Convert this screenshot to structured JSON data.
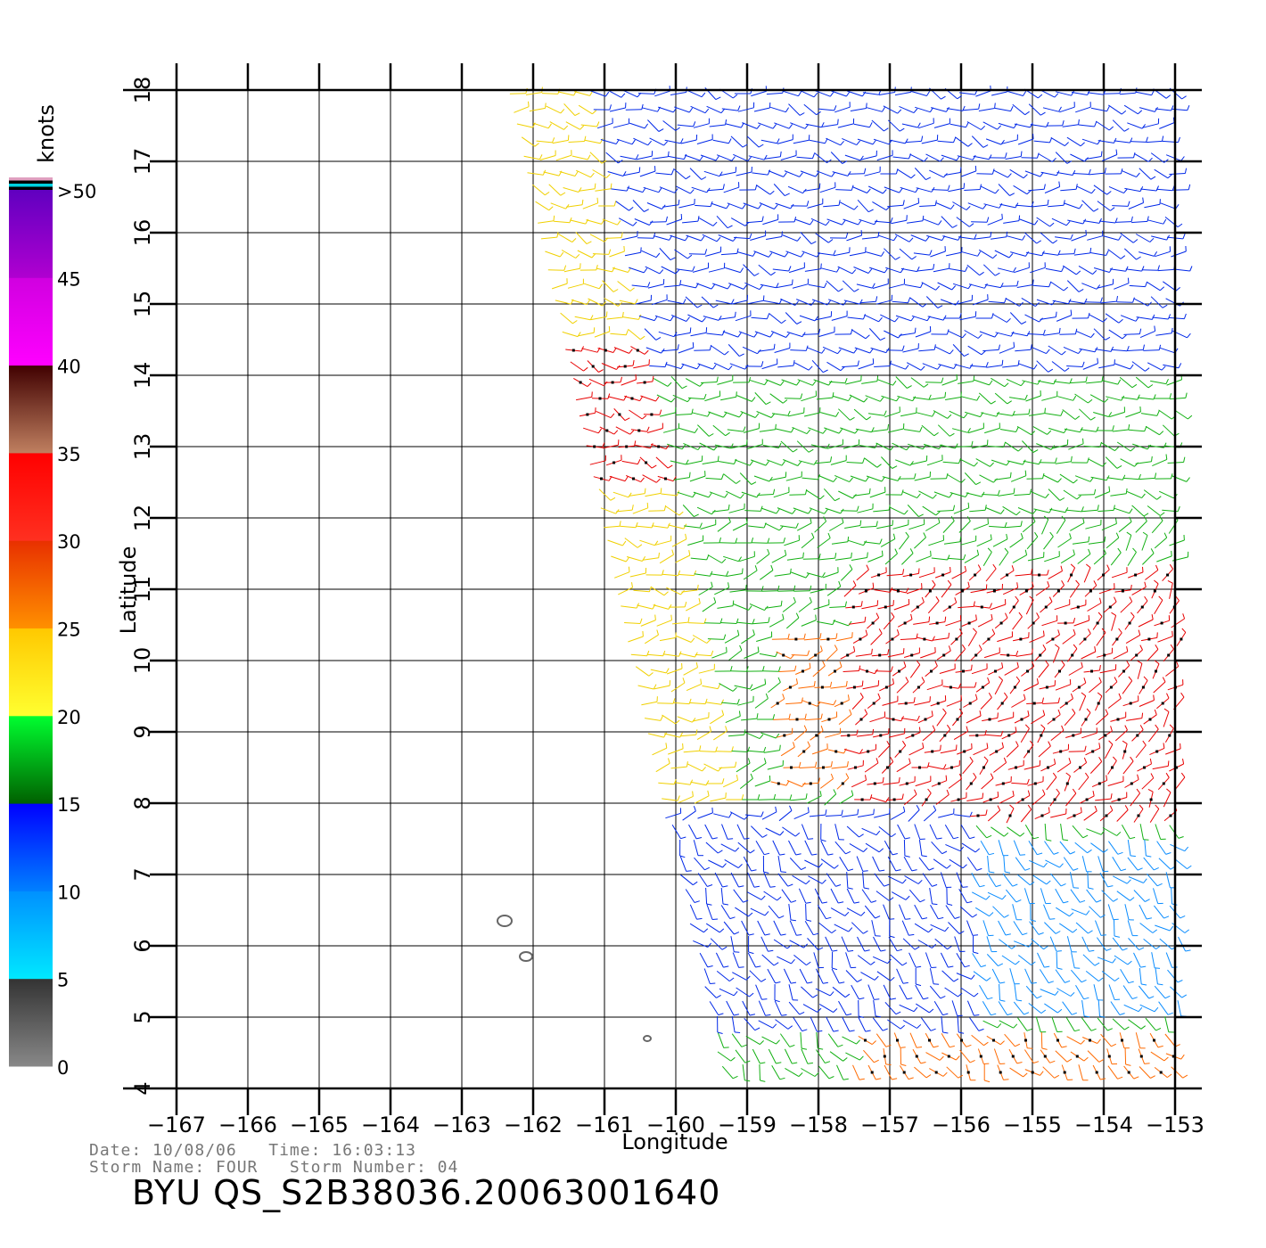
{
  "chart_data": {
    "type": "wind-vector-map",
    "xlabel": "Longitude",
    "ylabel": "Latitude",
    "xlim": [
      -167,
      -153
    ],
    "ylim": [
      4,
      18
    ],
    "x_ticks": [
      "-167",
      "-166",
      "-165",
      "-164",
      "-163",
      "-162",
      "-161",
      "-160",
      "-159",
      "-158",
      "-157",
      "-156",
      "-155",
      "-154",
      "-153"
    ],
    "y_ticks": [
      "4",
      "5",
      "6",
      "7",
      "8",
      "9",
      "10",
      "11",
      "12",
      "13",
      "14",
      "15",
      "16",
      "17",
      "18"
    ],
    "grid": true,
    "colorbar": {
      "unit": "knots",
      "labels": [
        "0",
        "5",
        "10",
        "15",
        "20",
        "25",
        "30",
        "35",
        "40",
        "45",
        ">50"
      ],
      "bands": [
        {
          "from": 0,
          "to": 5,
          "colors": [
            "#888888",
            "#333333"
          ]
        },
        {
          "from": 5,
          "to": 10,
          "colors": [
            "#00e8ff",
            "#0090ff"
          ]
        },
        {
          "from": 10,
          "to": 15,
          "colors": [
            "#0080ff",
            "#0000ff"
          ]
        },
        {
          "from": 15,
          "to": 20,
          "colors": [
            "#006000",
            "#00ff30"
          ]
        },
        {
          "from": 20,
          "to": 25,
          "colors": [
            "#ffff30",
            "#ffc800"
          ]
        },
        {
          "from": 25,
          "to": 30,
          "colors": [
            "#ff9000",
            "#e83000"
          ]
        },
        {
          "from": 30,
          "to": 35,
          "colors": [
            "#ff3020",
            "#ff0000"
          ]
        },
        {
          "from": 35,
          "to": 40,
          "colors": [
            "#c08060",
            "#400000"
          ]
        },
        {
          "from": 40,
          "to": 45,
          "colors": [
            "#ff00ff",
            "#d000e0"
          ]
        },
        {
          "from": 45,
          "to": 50,
          "colors": [
            "#b000d0",
            "#6000c0"
          ]
        }
      ],
      "extra_strips": [
        "#e0a0c0",
        "#000000",
        "#00d0e0",
        "#000000"
      ]
    },
    "swath": {
      "west_edge": [
        [
          -162.3,
          18
        ],
        [
          -161,
          12
        ],
        [
          -159.3,
          4
        ]
      ],
      "east_edge": [
        [
          -152.9,
          18
        ],
        [
          -152.9,
          4
        ]
      ],
      "speed_regions": [
        {
          "name": "northern-calm",
          "speed_knots": 11
        },
        {
          "name": "central-moderate",
          "speed_knots": 19
        },
        {
          "name": "western-strip",
          "speed_knots": 24
        },
        {
          "name": "storm-core",
          "speed_knots": 30
        },
        {
          "name": "southern-calm",
          "speed_knots": 10
        },
        {
          "name": "southeast-band",
          "speed_knots": 25
        }
      ]
    },
    "islands": [
      [
        -162.4,
        6.35
      ],
      [
        -162.1,
        5.85
      ],
      [
        -160.4,
        4.7
      ]
    ]
  },
  "footer": {
    "date_line": "Date: 10/08/06   Time: 16:03:13",
    "storm_line": "Storm Name: FOUR   Storm Number: 04",
    "filename": "BYU QS_S2B38036.20063001640"
  }
}
